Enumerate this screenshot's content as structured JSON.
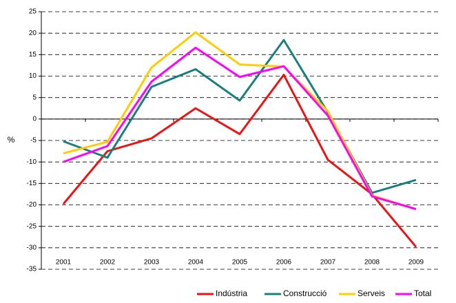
{
  "chart_data": {
    "type": "line",
    "y_label": "%",
    "categories": [
      "2001",
      "2002",
      "2003",
      "2004",
      "2005",
      "2006",
      "2007",
      "2008",
      "2009"
    ],
    "series": [
      {
        "name": "Indústria",
        "color": "#ee1111",
        "values": [
          -19.8,
          -7.5,
          -4.5,
          2.5,
          -3.5,
          10.3,
          -9.5,
          -17.5,
          -29.8
        ]
      },
      {
        "name": "Construcció",
        "color": "#17807e",
        "values": [
          -5.2,
          -9,
          7.5,
          11.6,
          4.3,
          18.4,
          1.5,
          -17.2,
          -14.2
        ]
      },
      {
        "name": "Serveis",
        "color": "#ffcc00",
        "values": [
          -8,
          -5.3,
          12,
          20.2,
          12.7,
          12.2,
          1.8,
          -17.8,
          -21
        ]
      },
      {
        "name": "Total",
        "color": "#ff00ff",
        "values": [
          -10,
          -6.3,
          8.7,
          16.6,
          9.8,
          12.3,
          0.8,
          -18,
          -21
        ]
      }
    ],
    "ylim": [
      -35,
      25
    ],
    "yticks": [
      -35,
      -30,
      -25,
      -20,
      -15,
      -10,
      -5,
      0,
      5,
      10,
      15,
      20,
      25
    ],
    "grid": true,
    "legend": "bottom-right"
  }
}
